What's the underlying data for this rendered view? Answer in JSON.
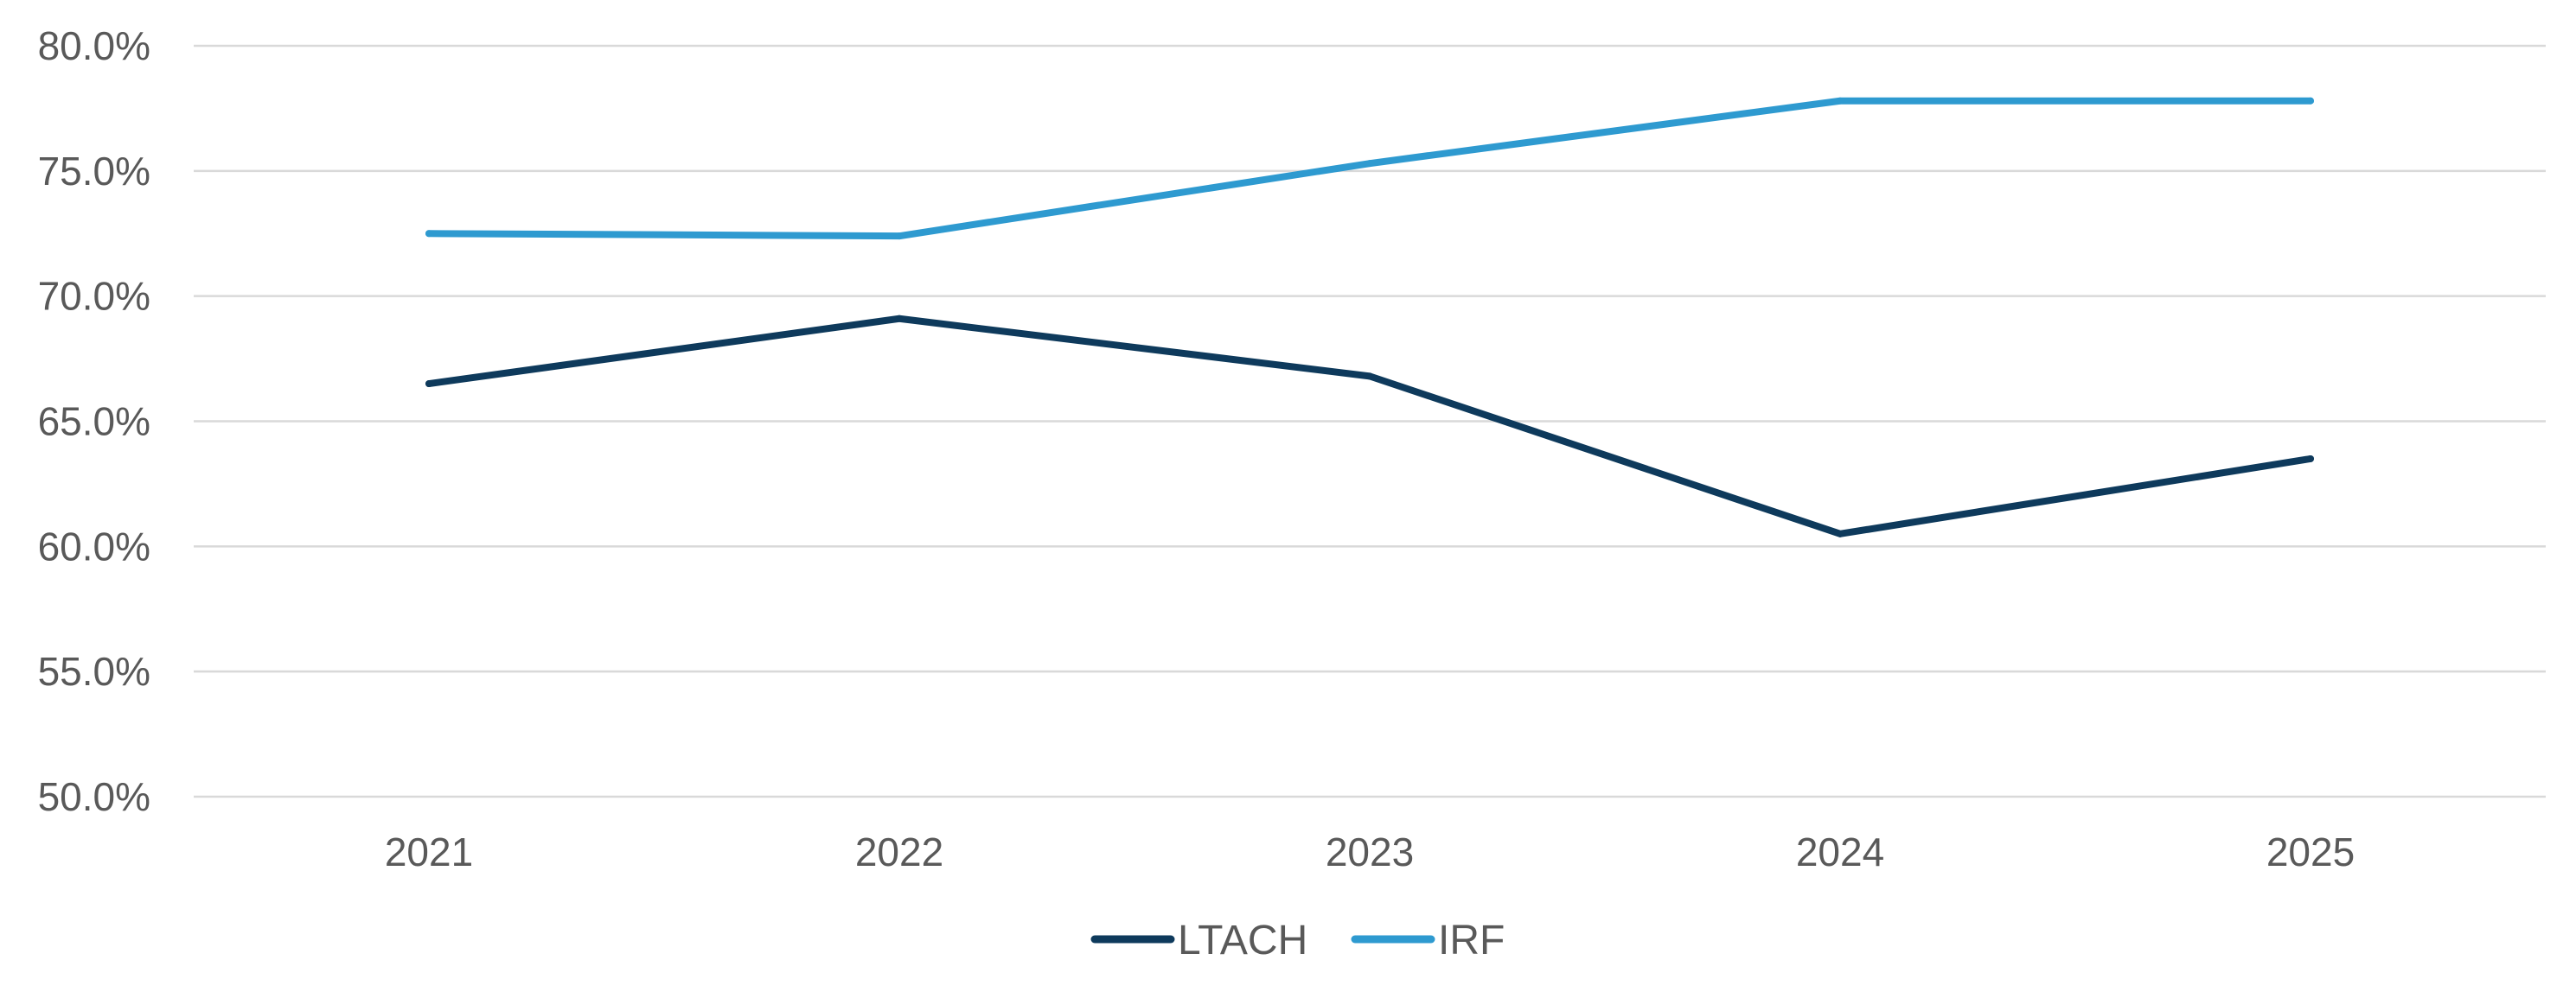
{
  "chart_data": {
    "type": "line",
    "title": "",
    "xlabel": "",
    "ylabel": "",
    "categories": [
      "2021",
      "2022",
      "2023",
      "2024",
      "2025"
    ],
    "series": [
      {
        "name": "LTACH",
        "values": [
          66.5,
          69.1,
          66.8,
          60.5,
          63.5
        ],
        "color": "#0e3a5c"
      },
      {
        "name": "IRF",
        "values": [
          72.5,
          72.4,
          75.3,
          77.8,
          77.8
        ],
        "color": "#2e9ad0"
      }
    ],
    "ylim": [
      50,
      80
    ],
    "yticks": [
      "50.0%",
      "55.0%",
      "60.0%",
      "65.0%",
      "70.0%",
      "75.0%",
      "80.0%"
    ],
    "grid": true,
    "legend": "bottom-center",
    "colors": {
      "gridline": "#d9d9d9",
      "text": "#595959"
    }
  }
}
